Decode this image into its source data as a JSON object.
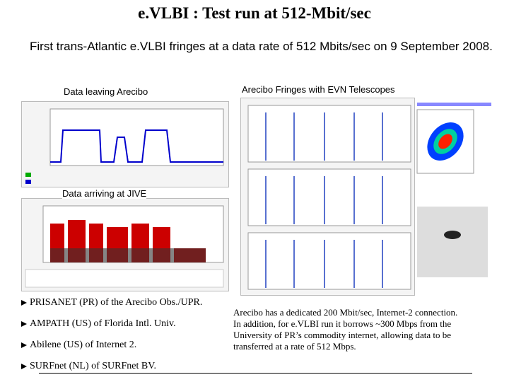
{
  "title": "e.VLBI : Test run at 512-Mbit/sec",
  "intro": "First trans-Atlantic e.VLBI fringes at a data rate of 512 Mbits/sec on 9 September 2008.",
  "captions": [
    "Data leaving Arecibo",
    "Arecibo Fringes with EVN Telescopes",
    "Data arriving at JIVE"
  ],
  "bullets": [
    "PRISANET (PR) of the Arecibo Obs./UPR.",
    "AMPATH (US) of Florida Intl. Univ.",
    "Abilene (US) of Internet 2.",
    "SURFnet (NL) of SURFnet BV."
  ],
  "paragraph": "Arecibo has a dedicated 200 Mbit/sec, Internet-2 connection. In addition, for e.VLBI run it borrows ~300 Mbps from the University of PR’s commodity internet, allowing data to be transferred at a rate of 512 Mbps."
}
